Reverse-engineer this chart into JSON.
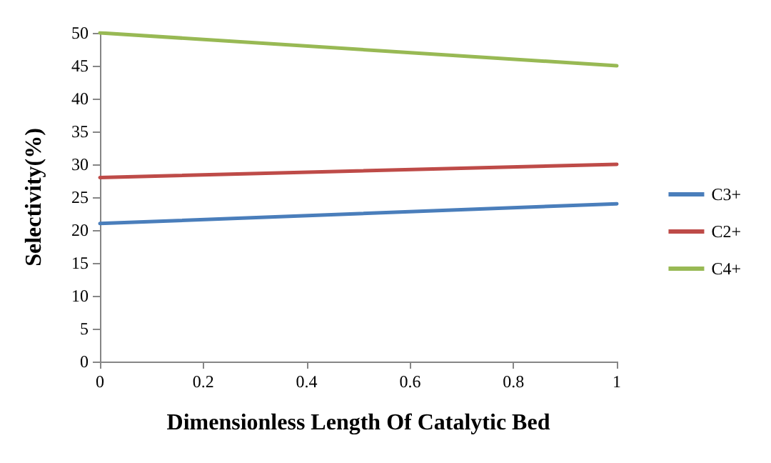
{
  "chart_data": {
    "type": "line",
    "xlabel": "Dimensionless Length Of Catalytic Bed",
    "ylabel": "Selectivity(%)",
    "x": [
      0,
      1
    ],
    "xlim": [
      0,
      1
    ],
    "xticks": [
      0,
      0.2,
      0.4,
      0.6,
      0.8,
      1
    ],
    "ylim": [
      0,
      50
    ],
    "yticks": [
      0,
      5,
      10,
      15,
      20,
      25,
      30,
      35,
      40,
      45,
      50
    ],
    "grid": false,
    "legend": "right",
    "marker": "none",
    "line_style": "solid",
    "series": [
      {
        "name": "C3+",
        "color": "#4a7ebb",
        "values": [
          21,
          24
        ]
      },
      {
        "name": "C2+",
        "color": "#be4b48",
        "values": [
          28,
          30
        ]
      },
      {
        "name": "C4+",
        "color": "#98b954",
        "values": [
          50,
          45
        ]
      }
    ]
  }
}
